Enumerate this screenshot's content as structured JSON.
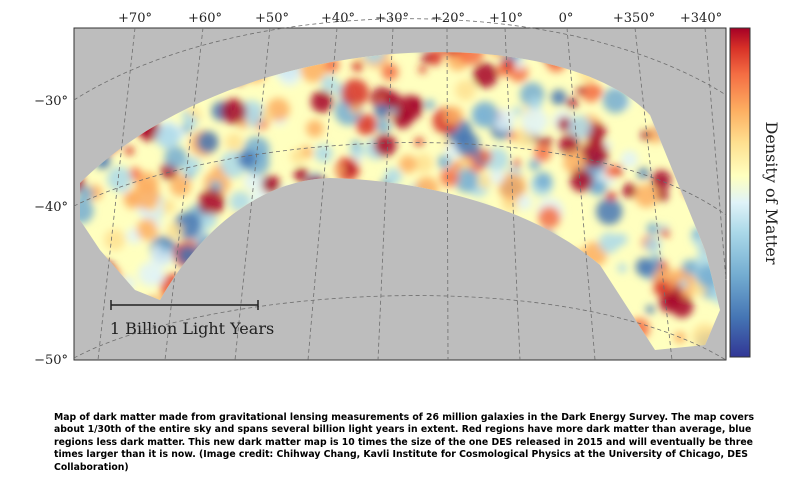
{
  "map": {
    "ra_labels": [
      "+70°",
      "+60°",
      "+50°",
      "+40°",
      "+30°",
      "+20°",
      "+10°",
      "0°",
      "+350°",
      "+340°"
    ],
    "dec_labels": [
      "−30°",
      "−40°",
      "−50°"
    ],
    "scale_bar_label": "1 Billion Light Years",
    "colorbar_label": "Density of Matter",
    "colors": {
      "background": "#bdbdbd",
      "grid": "#6e6e6e",
      "high_density": "#a50026",
      "average": "#ffffbf",
      "low_density": "#313695"
    }
  },
  "caption": "Map of dark matter made from gravitational lensing measurements of 26 million galaxies in the Dark Energy Survey. The map covers about 1/30th of the entire sky and spans several billion light years in extent. Red regions have more dark matter than average, blue regions less dark matter. This new dark matter map is 10 times the size of the one DES released in 2015 and will eventually be three times larger than it is now. (Image credit: Chihway Chang, Kavli Institute for Cosmological Physics at the University of Chicago, DES Collaboration)"
}
